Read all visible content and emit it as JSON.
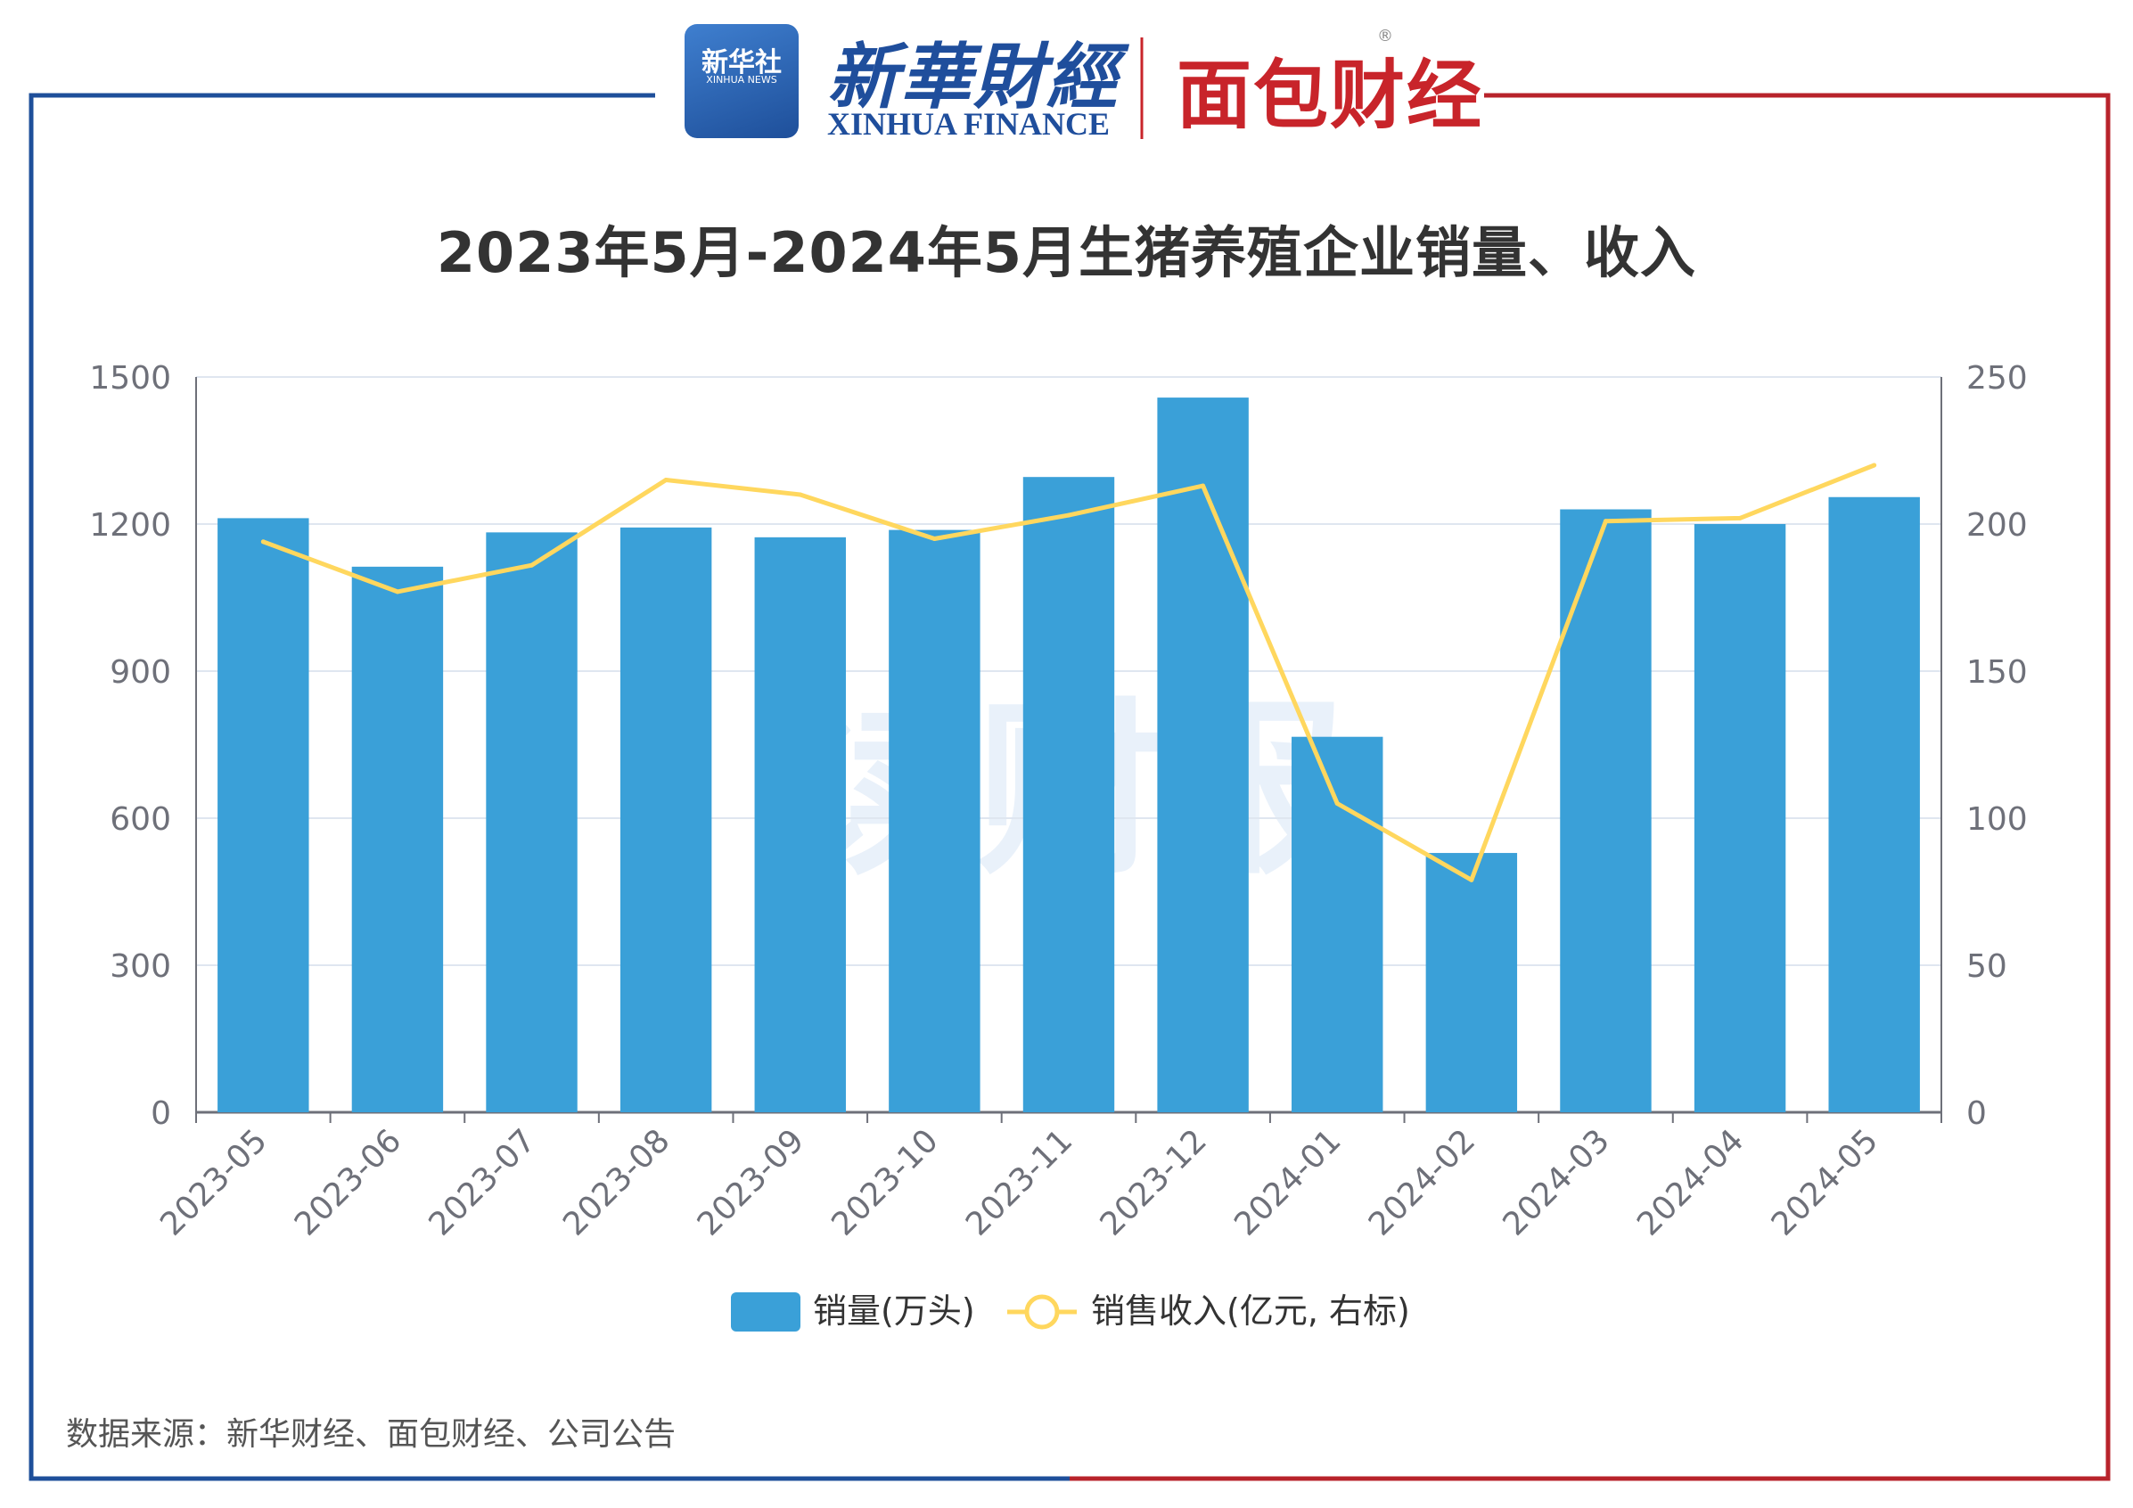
{
  "header": {
    "xinhua_badge_cn": "新华社",
    "xinhua_badge_en": "XINHUA NEWS",
    "xinhua_finance_cn": "新華財經",
    "xinhua_finance_en": "XINHUA FINANCE",
    "mianbao": "面包财经",
    "registered": "®"
  },
  "watermark": "读财报",
  "source": "数据来源：新华财经、面包财经、公司公告",
  "colors": {
    "bar": "#3aa0d8",
    "line": "#ffd75e",
    "frame_left": "#1e4f9a",
    "frame_right": "#b8232b",
    "grid": "#dfe6f0",
    "axis": "#6e7079",
    "tick_text": "#6e7079"
  },
  "chart_data": {
    "type": "bar",
    "title": "2023年5月-2024年5月生猪养殖企业销量、收入",
    "categories": [
      "2023-05",
      "2023-06",
      "2023-07",
      "2023-08",
      "2023-09",
      "2023-10",
      "2023-11",
      "2023-12",
      "2024-01",
      "2024-02",
      "2024-03",
      "2024-04",
      "2024-05"
    ],
    "series": [
      {
        "name": "销量(万头)",
        "type": "bar",
        "axis": "left",
        "values": [
          1212,
          1113,
          1183,
          1193,
          1173,
          1188,
          1296,
          1458,
          766,
          529,
          1230,
          1200,
          1255
        ]
      },
      {
        "name": "销售收入(亿元, 右标)",
        "type": "line",
        "axis": "right",
        "values": [
          194,
          177,
          186,
          215,
          210,
          195,
          203,
          213,
          105,
          79,
          201,
          202,
          220
        ]
      }
    ],
    "y_left": {
      "min": 0,
      "max": 1500,
      "ticks": [
        0,
        300,
        600,
        900,
        1200,
        1500
      ]
    },
    "y_right": {
      "min": 0,
      "max": 250,
      "ticks": [
        0,
        50,
        100,
        150,
        200,
        250
      ]
    },
    "legend_position": "bottom-center",
    "grid": true
  }
}
